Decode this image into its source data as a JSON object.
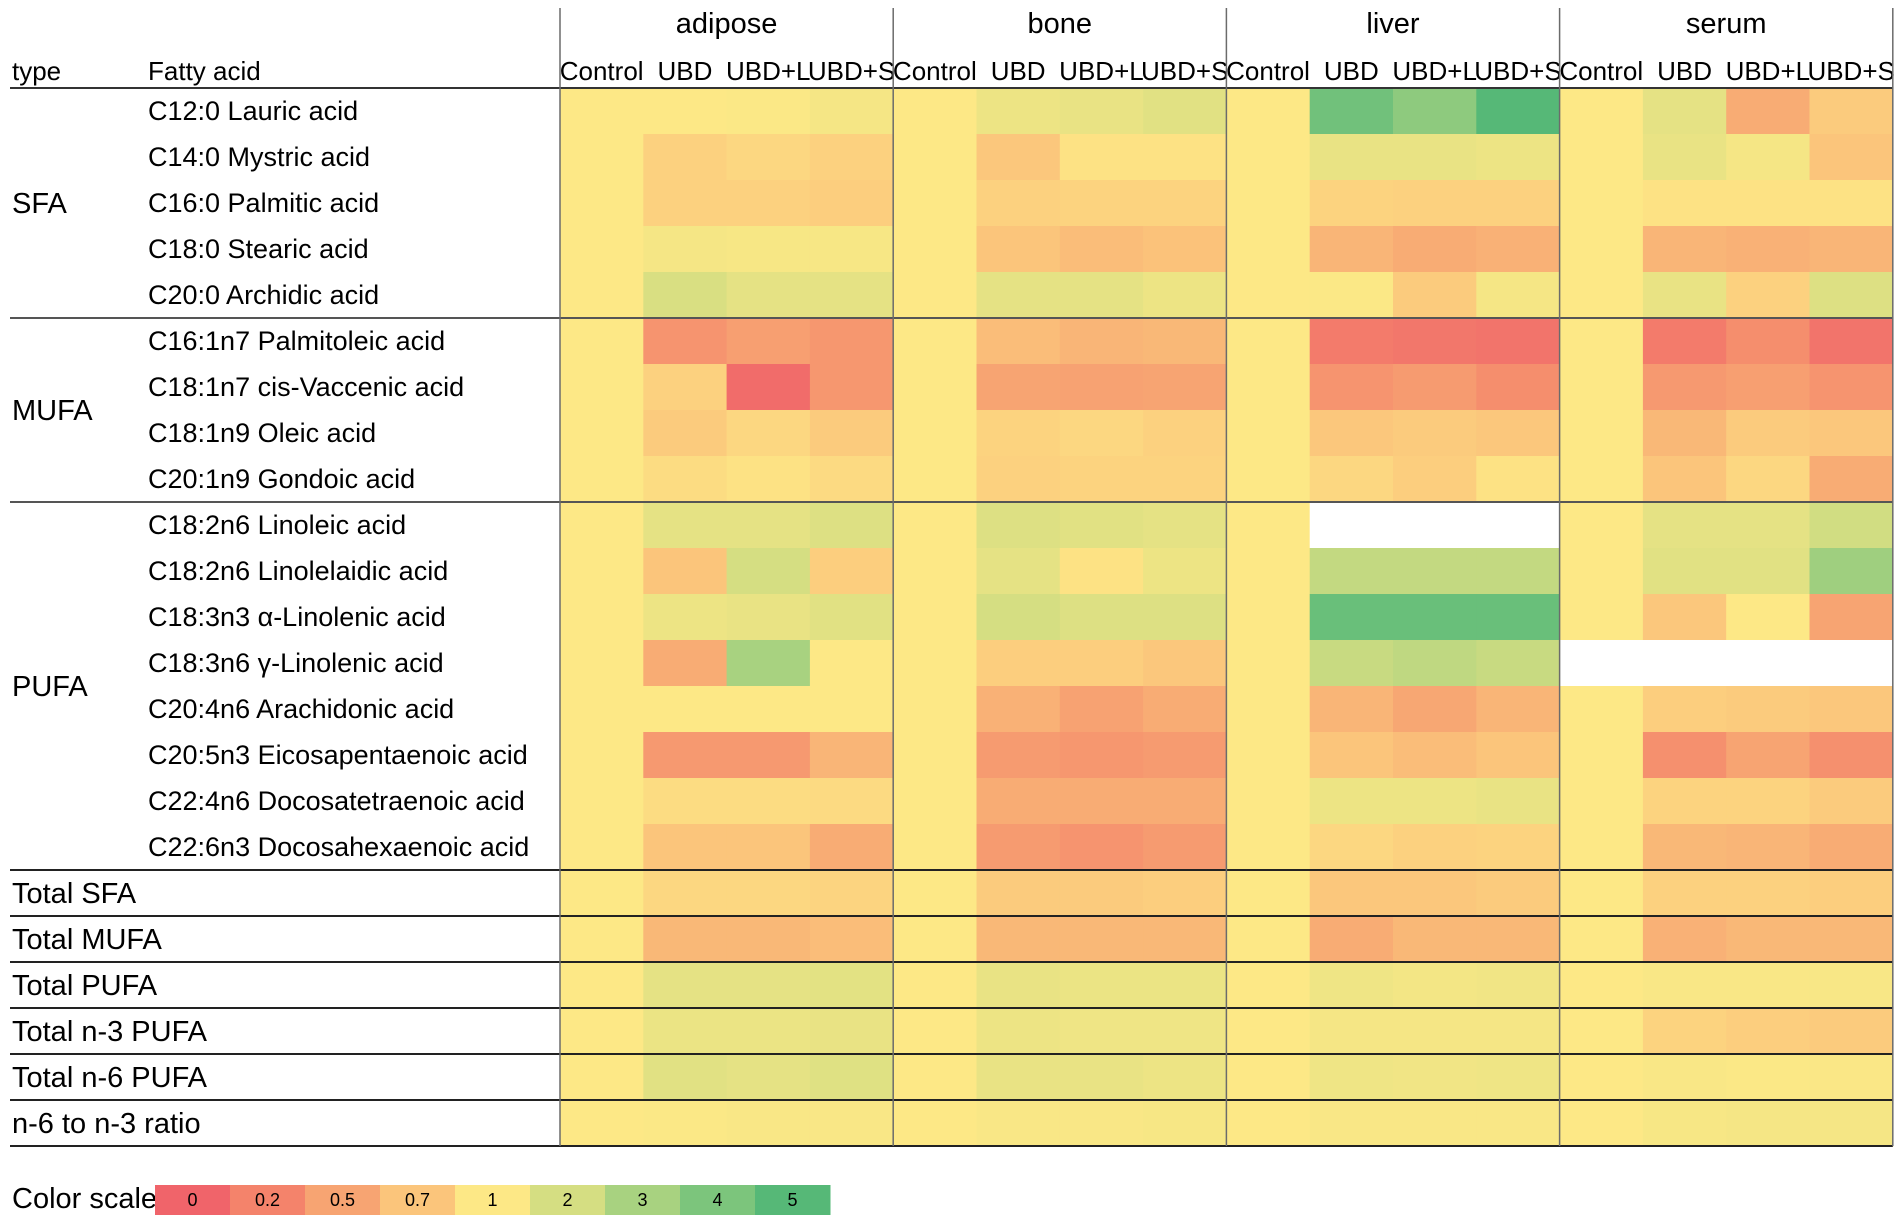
{
  "chart_data": {
    "type": "heatmap",
    "header": {
      "type": "type",
      "fatty_acid": "Fatty acid"
    },
    "tissues": [
      "adipose",
      "bone",
      "liver",
      "serum"
    ],
    "groups": [
      "Control",
      "UBD",
      "UBD+L",
      "UBD+S"
    ],
    "row_groups": [
      {
        "name": "SFA",
        "rows": [
          {
            "label": "C12:0 Lauric acid",
            "values": [
              1,
              1,
              1.05,
              1.2,
              1,
              1.4,
              1.5,
              1.7,
              1,
              4.3,
              3.6,
              5,
              1,
              1.6,
              0.55,
              0.75
            ]
          },
          {
            "label": "C14:0 Mystric acid",
            "values": [
              1,
              0.8,
              0.85,
              0.8,
              1,
              0.72,
              0.95,
              0.95,
              1,
              1.5,
              1.5,
              1.4,
              1,
              1.5,
              1.2,
              0.7
            ]
          },
          {
            "label": "C16:0 Palmitic acid",
            "values": [
              1,
              0.8,
              0.8,
              0.78,
              1,
              0.8,
              0.82,
              0.82,
              1,
              0.82,
              0.8,
              0.8,
              1,
              0.95,
              0.95,
              0.95
            ]
          },
          {
            "label": "C18:0 Stearic acid",
            "values": [
              1,
              1.2,
              1.15,
              1.15,
              1,
              0.7,
              0.65,
              0.68,
              1,
              0.6,
              0.55,
              0.58,
              1,
              0.6,
              0.58,
              0.6
            ]
          },
          {
            "label": "C20:0 Archidic acid",
            "values": [
              1,
              1.9,
              1.6,
              1.6,
              1,
              1.6,
              1.6,
              1.4,
              1,
              1.05,
              0.75,
              1.2,
              1,
              1.5,
              0.8,
              1.8
            ]
          }
        ]
      },
      {
        "name": "MUFA",
        "rows": [
          {
            "label": "C16:1n7 Palmitoleic acid",
            "values": [
              1,
              0.35,
              0.45,
              0.38,
              1,
              0.65,
              0.6,
              0.62,
              1,
              0.15,
              0.12,
              0.1,
              1,
              0.15,
              0.3,
              0.1
            ]
          },
          {
            "label": "C18:1n7 cis-Vaccenic acid",
            "values": [
              1,
              0.8,
              0.05,
              0.38,
              1,
              0.5,
              0.48,
              0.5,
              1,
              0.35,
              0.42,
              0.3,
              1,
              0.4,
              0.45,
              0.35
            ]
          },
          {
            "label": "C18:1n9 Oleic acid",
            "values": [
              1,
              0.75,
              0.85,
              0.75,
              1,
              0.82,
              0.85,
              0.8,
              1,
              0.72,
              0.75,
              0.72,
              1,
              0.62,
              0.75,
              0.72
            ]
          },
          {
            "label": "C20:1n9 Gondoic acid",
            "values": [
              1,
              0.9,
              0.95,
              0.88,
              1,
              0.8,
              0.82,
              0.82,
              1,
              0.85,
              0.78,
              0.95,
              1,
              0.7,
              0.85,
              0.55
            ]
          }
        ]
      },
      {
        "name": "PUFA",
        "rows": [
          {
            "label": "C18:2n6 Linoleic acid",
            "values": [
              1,
              1.6,
              1.6,
              1.8,
              1,
              1.8,
              1.7,
              1.6,
              1,
              null,
              null,
              null,
              1,
              1.6,
              1.6,
              2.1
            ]
          },
          {
            "label": "C18:2n6 Linolelaidic acid",
            "values": [
              1,
              0.7,
              2,
              0.78,
              1,
              1.6,
              0.95,
              1.4,
              1,
              2.4,
              2.4,
              2.4,
              1,
              1.7,
              1.7,
              3.2
            ]
          },
          {
            "label": "C18:3n3 α-Linolenic acid",
            "values": [
              1,
              1.4,
              1.5,
              1.7,
              1,
              2,
              1.8,
              1.8,
              1,
              4.5,
              4.5,
              4.5,
              1,
              0.72,
              1,
              0.5
            ]
          },
          {
            "label": "C18:3n6 γ-Linolenic acid",
            "values": [
              1,
              0.55,
              3,
              1,
              1,
              0.78,
              0.78,
              0.72,
              1,
              2.3,
              2.5,
              2.3,
              null,
              null,
              null,
              null
            ]
          },
          {
            "label": "C20:4n6 Arachidonic acid",
            "values": [
              1,
              1,
              1,
              1,
              1,
              0.58,
              0.48,
              0.55,
              1,
              0.6,
              0.52,
              0.6,
              1,
              0.78,
              0.75,
              0.72
            ]
          },
          {
            "label": "C20:5n3 Eicosapentaenoic acid",
            "values": [
              1,
              0.4,
              0.4,
              0.6,
              1,
              0.42,
              0.38,
              0.42,
              1,
              0.7,
              0.65,
              0.7,
              1,
              0.32,
              0.5,
              0.32
            ]
          },
          {
            "label": "C22:4n6 Docosatetraenoic acid",
            "values": [
              1,
              0.9,
              0.9,
              0.88,
              1,
              0.55,
              0.55,
              0.55,
              1,
              1.4,
              1.4,
              1.5,
              1,
              0.82,
              0.82,
              0.75
            ]
          },
          {
            "label": "C22:6n3 Docosahexaenoic acid",
            "values": [
              1,
              0.7,
              0.7,
              0.55,
              1,
              0.42,
              0.35,
              0.42,
              1,
              0.85,
              0.8,
              0.82,
              1,
              0.62,
              0.6,
              0.55
            ]
          }
        ]
      }
    ],
    "totals": [
      {
        "label": "Total SFA",
        "values": [
          1,
          0.85,
          0.85,
          0.83,
          1,
          0.75,
          0.75,
          0.78,
          1,
          0.72,
          0.72,
          0.75,
          1,
          0.8,
          0.8,
          0.78
        ]
      },
      {
        "label": "Total MUFA",
        "values": [
          1,
          0.62,
          0.62,
          0.65,
          1,
          0.62,
          0.62,
          0.62,
          1,
          0.55,
          0.62,
          0.62,
          1,
          0.58,
          0.62,
          0.62
        ]
      },
      {
        "label": "Total PUFA",
        "values": [
          1,
          1.6,
          1.6,
          1.65,
          1,
          1.5,
          1.45,
          1.45,
          1,
          1.35,
          1.25,
          1.3,
          1,
          1.1,
          1.1,
          1.12
        ]
      },
      {
        "label": "Total n-3 PUFA",
        "values": [
          1,
          1.45,
          1.45,
          1.5,
          1,
          1.4,
          1.35,
          1.35,
          1,
          1.2,
          1.2,
          1.2,
          1,
          0.82,
          0.78,
          0.75
        ]
      },
      {
        "label": "Total n-6 PUFA",
        "values": [
          1,
          1.7,
          1.6,
          1.75,
          1,
          1.5,
          1.5,
          1.4,
          1,
          1.35,
          1.3,
          1.35,
          1,
          1.1,
          1.05,
          1.08
        ]
      },
      {
        "label": "n-6 to n-3 ratio",
        "values": [
          1,
          1.05,
          1.1,
          1.1,
          1,
          1.1,
          1.1,
          1.15,
          1,
          1.1,
          1.1,
          1.1,
          1,
          1.15,
          1.2,
          1.2
        ]
      }
    ],
    "color_scale": {
      "title": "Color scale:",
      "stops": [
        {
          "value": 0,
          "label": "0",
          "color": "#f0646a"
        },
        {
          "value": 0.2,
          "label": "0.2",
          "color": "#f4836b"
        },
        {
          "value": 0.5,
          "label": "0.5",
          "color": "#f7a472"
        },
        {
          "value": 0.7,
          "label": "0.7",
          "color": "#fbc57b"
        },
        {
          "value": 1,
          "label": "1",
          "color": "#fde886"
        },
        {
          "value": 2,
          "label": "2",
          "color": "#d5de82"
        },
        {
          "value": 3,
          "label": "3",
          "color": "#a8d280"
        },
        {
          "value": 4,
          "label": "4",
          "color": "#7cc57c"
        },
        {
          "value": 5,
          "label": "5",
          "color": "#56b877"
        }
      ]
    }
  }
}
